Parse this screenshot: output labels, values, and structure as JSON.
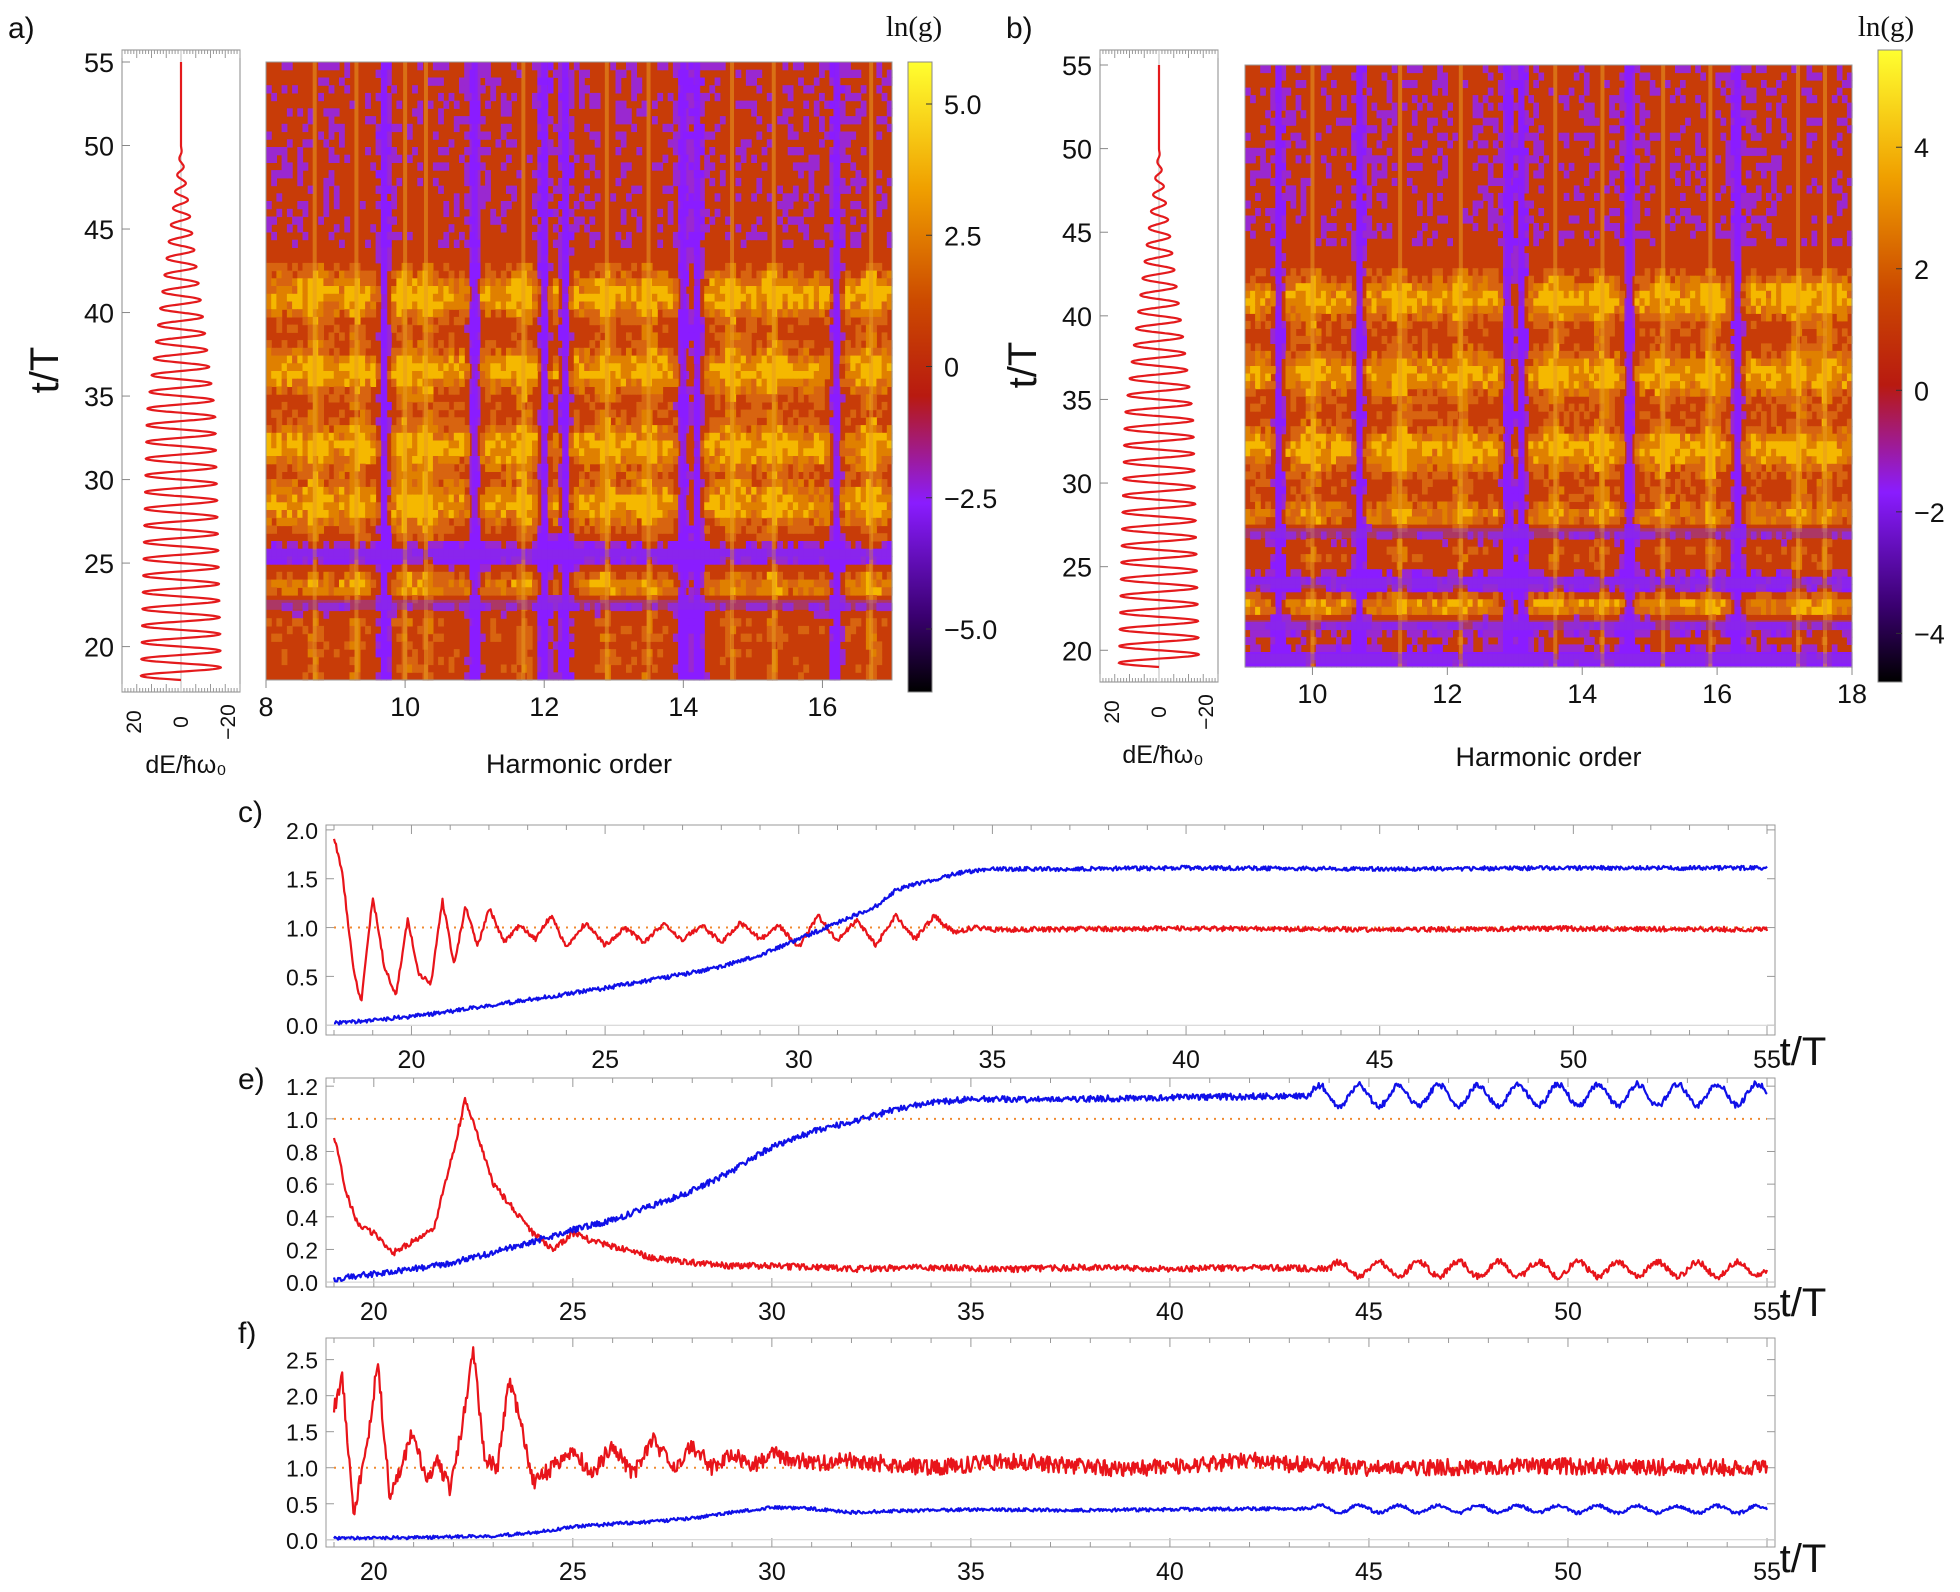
{
  "chart_data": [
    {
      "id": "a",
      "type": "heatmap",
      "panel_label": "a)",
      "xlabel": "Harmonic order",
      "ylabel": "t/T",
      "x_range": [
        8,
        17
      ],
      "x_ticks": [
        "8",
        "10",
        "12",
        "14",
        "16"
      ],
      "y_range": [
        18,
        55
      ],
      "y_ticks": [
        "20",
        "25",
        "30",
        "35",
        "40",
        "45",
        "50",
        "55"
      ],
      "colorbar": {
        "title": "ln(g)",
        "range": [
          -6.2,
          5.8
        ],
        "ticks": [
          "5.0",
          "2.5",
          "0",
          "−2.5",
          "−5.0"
        ]
      },
      "side_plot": {
        "xlabel": "dE/ħω₀",
        "x_ticks": [
          "20",
          "0",
          "−20"
        ],
        "x_range": [
          25,
          -25
        ],
        "amplitude_start": 17,
        "oscillation_period_tT": 1,
        "color": "#e41a1c"
      },
      "bright_columns": [
        8.7,
        9.3,
        10.0,
        10.3,
        11.7,
        12.9,
        13.5,
        14.7,
        15.3,
        16.7
      ],
      "dark_columns": [
        9.7,
        11.0,
        12.0,
        12.3,
        14.0,
        14.2,
        16.2
      ],
      "dark_bands_tT": [
        25.5,
        22.5
      ],
      "bright_bands_tT": [
        41.0,
        36.5,
        32.0,
        28.5,
        23.0
      ]
    },
    {
      "id": "b",
      "type": "heatmap",
      "panel_label": "b)",
      "xlabel": "Harmonic order",
      "ylabel": "t/T",
      "x_range": [
        9,
        18
      ],
      "x_ticks": [
        "10",
        "12",
        "14",
        "16",
        "18"
      ],
      "y_range": [
        19,
        55
      ],
      "y_ticks": [
        "20",
        "25",
        "30",
        "35",
        "40",
        "45",
        "50",
        "55"
      ],
      "colorbar": {
        "title": "ln(g)",
        "range": [
          -4.8,
          5.6
        ],
        "ticks": [
          "4",
          "2",
          "0",
          "−2",
          "−4"
        ]
      },
      "side_plot": {
        "xlabel": "dE/ħω₀",
        "x_ticks": [
          "20",
          "0",
          "−20"
        ],
        "x_range": [
          25,
          -25
        ],
        "amplitude_start": 17,
        "oscillation_period_tT": 1,
        "color": "#e41a1c"
      },
      "bright_columns": [
        10.0,
        11.3,
        12.2,
        13.6,
        14.3,
        15.2,
        15.9,
        17.2,
        17.6
      ],
      "dark_columns": [
        9.5,
        10.7,
        12.9,
        13.1,
        14.7,
        16.3
      ],
      "dark_bands_tT": [
        19.5,
        21.5,
        24.0,
        27.0
      ],
      "bright_bands_tT": [
        41.0,
        36.5,
        32.0,
        27.5,
        22.5
      ]
    },
    {
      "id": "c",
      "type": "line",
      "panel_label": "c)",
      "xlabel": "t/T",
      "x_range": [
        18,
        55
      ],
      "x_ticks": [
        "20",
        "25",
        "30",
        "35",
        "40",
        "45",
        "50",
        "55"
      ],
      "y_range": [
        -0.1,
        2.05
      ],
      "y_ticks": [
        "0.0",
        "0.5",
        "1.0",
        "1.5",
        "2.0"
      ],
      "reference_line": 1.0,
      "series": [
        {
          "name": "red",
          "color": "#e8141a",
          "x": [
            18.0,
            18.2,
            18.5,
            18.7,
            19.0,
            19.3,
            19.6,
            19.9,
            20.2,
            20.5,
            20.8,
            21.1,
            21.4,
            21.7,
            22.0,
            22.4,
            22.8,
            23.2,
            23.6,
            24.0,
            24.5,
            25.0,
            25.5,
            26.0,
            26.5,
            27.0,
            27.5,
            28.0,
            28.5,
            29.0,
            29.5,
            30.0,
            30.5,
            31.0,
            31.5,
            32.0,
            32.5,
            33.0,
            33.5,
            34.0,
            34.5,
            35.0,
            40.0,
            45.0,
            50.0,
            55.0
          ],
          "values": [
            1.92,
            1.6,
            0.6,
            0.22,
            1.32,
            0.6,
            0.3,
            1.08,
            0.52,
            0.42,
            1.28,
            0.62,
            1.22,
            0.8,
            1.2,
            0.85,
            1.02,
            0.88,
            1.12,
            0.8,
            1.05,
            0.82,
            1.0,
            0.85,
            1.03,
            0.88,
            1.02,
            0.85,
            1.05,
            0.88,
            1.02,
            0.8,
            1.12,
            0.86,
            1.08,
            0.82,
            1.13,
            0.88,
            1.12,
            0.95,
            1.0,
            0.98,
            0.99,
            0.98,
            0.99,
            0.98
          ],
          "noise": 0.012
        },
        {
          "name": "blue",
          "color": "#1010e8",
          "x": [
            18.0,
            19.0,
            20.0,
            21.0,
            22.0,
            23.0,
            24.0,
            25.0,
            26.0,
            27.0,
            28.0,
            29.0,
            30.0,
            31.0,
            32.0,
            32.5,
            33.0,
            33.5,
            34.0,
            34.5,
            35.0,
            37.0,
            40.0,
            45.0,
            50.0,
            55.0
          ],
          "values": [
            0.02,
            0.05,
            0.09,
            0.14,
            0.2,
            0.26,
            0.32,
            0.38,
            0.45,
            0.52,
            0.6,
            0.72,
            0.88,
            1.05,
            1.22,
            1.38,
            1.45,
            1.48,
            1.55,
            1.58,
            1.6,
            1.6,
            1.61,
            1.6,
            1.61,
            1.61
          ],
          "noise": 0.01
        }
      ]
    },
    {
      "id": "e",
      "type": "line",
      "panel_label": "e)",
      "xlabel": "t/T",
      "x_range": [
        19,
        55
      ],
      "x_ticks": [
        "20",
        "25",
        "30",
        "35",
        "40",
        "45",
        "50",
        "55"
      ],
      "y_range": [
        -0.03,
        1.25
      ],
      "y_ticks": [
        "0.0",
        "0.2",
        "0.4",
        "0.6",
        "0.8",
        "1.0",
        "1.2"
      ],
      "reference_line": 1.0,
      "series": [
        {
          "name": "red",
          "color": "#e8141a",
          "x": [
            19.0,
            19.3,
            19.6,
            20.0,
            20.5,
            21.0,
            21.5,
            22.0,
            22.3,
            22.6,
            23.0,
            23.5,
            24.0,
            24.5,
            25.0,
            25.5,
            26.0,
            27.0,
            28.0,
            29.0,
            30.0,
            32.0,
            34.0,
            36.0,
            38.0,
            40.0,
            42.0,
            44.0,
            55.0
          ],
          "values": [
            0.9,
            0.55,
            0.35,
            0.3,
            0.18,
            0.25,
            0.32,
            0.8,
            1.12,
            0.9,
            0.6,
            0.45,
            0.3,
            0.2,
            0.3,
            0.25,
            0.22,
            0.15,
            0.12,
            0.1,
            0.1,
            0.08,
            0.09,
            0.08,
            0.09,
            0.08,
            0.09,
            0.08,
            0.08
          ],
          "noise": 0.015,
          "osc_start": 44,
          "osc_amp": 0.045,
          "osc_period": 1
        },
        {
          "name": "blue",
          "color": "#1010e8",
          "x": [
            19.0,
            20.0,
            21.0,
            22.0,
            23.0,
            24.0,
            25.0,
            26.0,
            27.0,
            28.0,
            29.0,
            30.0,
            31.0,
            32.0,
            33.0,
            34.0,
            35.0,
            37.0,
            40.0,
            43.0,
            55.0
          ],
          "values": [
            0.02,
            0.05,
            0.08,
            0.12,
            0.18,
            0.25,
            0.32,
            0.38,
            0.47,
            0.56,
            0.68,
            0.83,
            0.92,
            0.98,
            1.05,
            1.1,
            1.12,
            1.12,
            1.13,
            1.14,
            1.15
          ],
          "noise": 0.015,
          "osc_start": 43.5,
          "osc_amp": 0.065,
          "osc_period": 1
        }
      ]
    },
    {
      "id": "f",
      "type": "line",
      "panel_label": "f)",
      "xlabel": "t/T",
      "x_range": [
        19,
        55
      ],
      "x_ticks": [
        "20",
        "25",
        "30",
        "35",
        "40",
        "45",
        "50",
        "55"
      ],
      "y_range": [
        -0.1,
        2.8
      ],
      "y_ticks": [
        "0.0",
        "0.5",
        "1.0",
        "1.5",
        "2.0",
        "2.5"
      ],
      "reference_line": 1.0,
      "series": [
        {
          "name": "red",
          "color": "#e8141a",
          "x": [
            19.0,
            19.2,
            19.5,
            19.8,
            20.1,
            20.4,
            20.7,
            21.0,
            21.3,
            21.6,
            21.9,
            22.2,
            22.5,
            22.8,
            23.1,
            23.4,
            23.7,
            24.0,
            24.5,
            25.0,
            25.5,
            26.0,
            26.5,
            27.0,
            27.5,
            28.0,
            28.5,
            29.0,
            29.5,
            30.0,
            31.0,
            32.0,
            33.0,
            34.0,
            35.0,
            36.0,
            37.0,
            38.0,
            40.0,
            42.0,
            43.0,
            45.0,
            50.0,
            55.0
          ],
          "values": [
            1.8,
            2.3,
            0.4,
            1.2,
            2.45,
            0.6,
            1.0,
            1.55,
            0.8,
            1.1,
            0.7,
            1.5,
            2.6,
            1.1,
            1.0,
            2.2,
            1.6,
            0.8,
            1.0,
            1.25,
            0.9,
            1.35,
            0.9,
            1.4,
            1.0,
            1.3,
            1.0,
            1.2,
            1.0,
            1.2,
            1.05,
            1.1,
            1.05,
            1.0,
            1.05,
            1.1,
            1.05,
            1.0,
            1.0,
            1.1,
            1.05,
            1.0,
            1.02,
            1.0
          ],
          "noise": 0.04
        },
        {
          "name": "blue",
          "color": "#1010e8",
          "x": [
            19.0,
            21.0,
            23.0,
            24.0,
            25.0,
            26.0,
            27.0,
            28.0,
            29.0,
            30.0,
            31.0,
            32.0,
            33.0,
            35.0,
            38.0,
            40.0,
            42.0,
            43.5,
            55.0
          ],
          "values": [
            0.02,
            0.03,
            0.05,
            0.1,
            0.18,
            0.22,
            0.25,
            0.3,
            0.38,
            0.45,
            0.43,
            0.38,
            0.4,
            0.42,
            0.41,
            0.42,
            0.43,
            0.43,
            0.42
          ],
          "noise": 0.008,
          "osc_start": 43.5,
          "osc_amp": 0.05,
          "osc_period": 1
        }
      ]
    }
  ]
}
